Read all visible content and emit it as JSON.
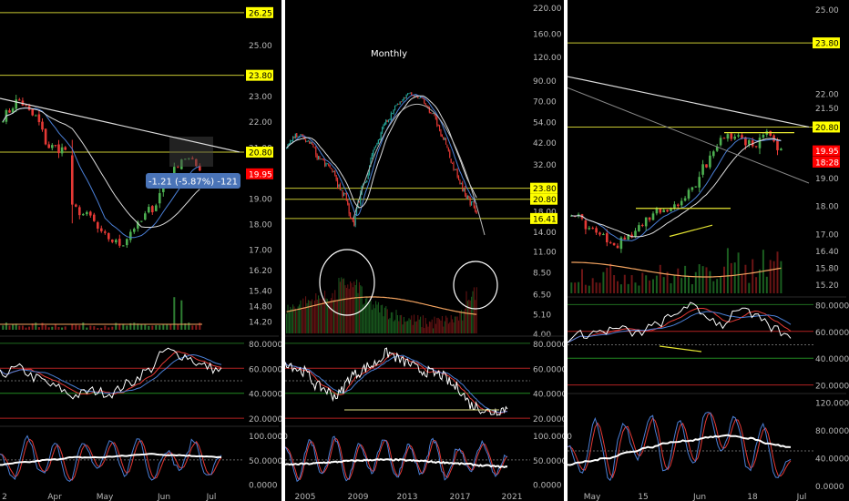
{
  "chart_data": [
    {
      "type": "candlestick",
      "title": "",
      "x_tick_labels": [
        "2",
        "Apr",
        "May",
        "Jun",
        "Jul"
      ],
      "price_axis": {
        "ticks": [
          "25.00",
          "23.00",
          "22.00",
          "21.00",
          "19.00",
          "18.00",
          "17.00",
          "16.20",
          "15.40",
          "14.80",
          "14.20"
        ],
        "ylim": [
          14.0,
          26.6
        ]
      },
      "price_labels": [
        {
          "value": 26.25,
          "text": "26.25",
          "style": "yellow"
        },
        {
          "value": 23.8,
          "text": "23.80",
          "style": "yellow"
        },
        {
          "value": 20.8,
          "text": "20.80",
          "style": "yellow"
        },
        {
          "value": 19.95,
          "text": "19.95",
          "style": "red"
        }
      ],
      "horizontal_lines": [
        26.25,
        23.8,
        20.8
      ],
      "annotation": "-1.21 (-5.87%) -121",
      "candles_approx": [
        {
          "o": 21.2,
          "c": 21.8
        },
        {
          "o": 21.8,
          "c": 22.3
        },
        {
          "o": 22.3,
          "c": 21.9
        },
        {
          "o": 21.9,
          "c": 22.5
        },
        {
          "o": 22.5,
          "c": 22.2
        },
        {
          "o": 22.2,
          "c": 22.8
        },
        {
          "o": 22.8,
          "c": 22.4
        },
        {
          "o": 22.4,
          "c": 21.8
        },
        {
          "o": 21.8,
          "c": 22.1
        },
        {
          "o": 22.1,
          "c": 21.4
        },
        {
          "o": 21.4,
          "c": 20.9
        },
        {
          "o": 20.9,
          "c": 21.3
        },
        {
          "o": 21.3,
          "c": 20.6
        },
        {
          "o": 20.6,
          "c": 20.9
        },
        {
          "o": 20.9,
          "c": 20.2
        },
        {
          "o": 20.2,
          "c": 20.6
        },
        {
          "o": 20.6,
          "c": 21.2
        },
        {
          "o": 21.2,
          "c": 20.7
        },
        {
          "o": 20.7,
          "c": 21.5
        },
        {
          "o": 21.5,
          "c": 21.0
        }
      ],
      "rsi": {
        "ticks": [
          "80.0000",
          "60.0000",
          "40.0000",
          "20.0000"
        ],
        "ylim": [
          15,
          85
        ]
      },
      "stoch": {
        "ticks": [
          "100.0000",
          "50.0000",
          "0.0000"
        ],
        "ylim": [
          -10,
          115
        ]
      }
    },
    {
      "type": "candlestick",
      "title": "Monthly",
      "x_tick_labels": [
        "2005",
        "2009",
        "2013",
        "2017",
        "2021"
      ],
      "price_axis": {
        "ticks": [
          "220.00",
          "160.00",
          "120.00",
          "90.00",
          "70.00",
          "54.00",
          "42.00",
          "32.00",
          "18.00",
          "14.00",
          "11.00",
          "8.50",
          "6.50",
          "5.10",
          "4.00"
        ],
        "ylim": [
          4.0,
          230.0
        ],
        "scale": "log"
      },
      "price_labels": [
        {
          "value": 23.8,
          "text": "23.80",
          "style": "yellow"
        },
        {
          "value": 20.8,
          "text": "20.80",
          "style": "yellow"
        },
        {
          "value": 16.41,
          "text": "16.41",
          "style": "yellow"
        }
      ],
      "horizontal_lines": [
        23.8,
        20.8,
        16.41
      ],
      "rsi": {
        "ticks": [
          "80.0000",
          "60.0000",
          "40.0000",
          "20.0000"
        ],
        "ylim": [
          15,
          85
        ]
      },
      "stoch": {
        "ticks": [
          "100.0000",
          "50.0000",
          "0.0000"
        ],
        "ylim": [
          -10,
          115
        ]
      }
    },
    {
      "type": "candlestick",
      "title": "",
      "x_tick_labels": [
        "May",
        "15",
        "Jun",
        "18",
        "Jul"
      ],
      "price_axis": {
        "ticks": [
          "25.00",
          "22.00",
          "21.50",
          "19.00",
          "18.00",
          "17.00",
          "16.40",
          "15.80",
          "15.20"
        ],
        "ylim": [
          15.0,
          25.2
        ]
      },
      "price_labels": [
        {
          "value": 23.8,
          "text": "23.80",
          "style": "yellow"
        },
        {
          "value": 20.8,
          "text": "20.80",
          "style": "yellow"
        },
        {
          "value": 19.95,
          "text": "19.95",
          "style": "red"
        },
        {
          "value": 19.55,
          "text": "18:28",
          "style": "red"
        }
      ],
      "horizontal_lines": [
        23.8,
        20.8
      ],
      "rsi": {
        "ticks": [
          "80.0000",
          "60.0000",
          "40.0000",
          "20.0000"
        ],
        "ylim": [
          15,
          85
        ]
      },
      "stoch": {
        "ticks": [
          "120.0000",
          "80.0000",
          "40.0000",
          "0.0000"
        ],
        "ylim": [
          -5,
          130
        ]
      }
    }
  ],
  "colors": {
    "background": "#000000",
    "up": "#26a69a",
    "up_alt": "#4caf50",
    "down": "#e53935",
    "yellow_line": "#c8c832",
    "label_yellow": "#ffff00",
    "label_red": "#ff0000",
    "ma_white": "#ffffff",
    "ma_blue": "#4a7fd6",
    "volume_ma": "#f4a460",
    "rsi_red_line": "#b22222",
    "rsi_green_line": "#228b22",
    "panel_border": "#2a2a2a",
    "axis_text": "#b8b8b8",
    "annotation_bg": "#4a74b8"
  }
}
